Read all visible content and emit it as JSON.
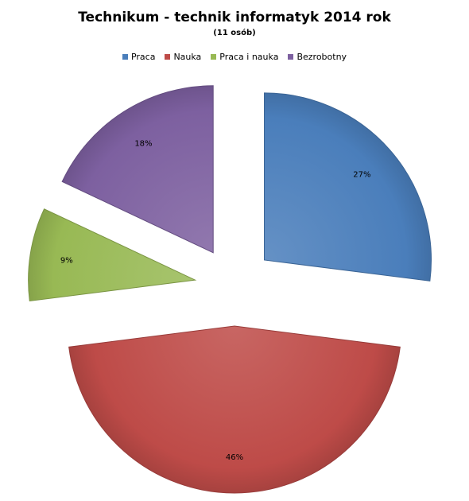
{
  "chart_data": {
    "type": "pie",
    "title": "Technikum - technik informatyk 2014 rok",
    "subtitle": "(11 osób)",
    "legend_position": "top",
    "exploded": true,
    "slices": [
      {
        "name": "Praca",
        "value": 27,
        "label": "27%",
        "color": "#4a7ebb"
      },
      {
        "name": "Nauka",
        "value": 46,
        "label": "46%",
        "color": "#be4b48"
      },
      {
        "name": "Praca i nauka",
        "value": 9,
        "label": "9%",
        "color": "#98b954"
      },
      {
        "name": "Bezrobotny",
        "value": 18,
        "label": "18%",
        "color": "#7d60a0"
      }
    ]
  }
}
